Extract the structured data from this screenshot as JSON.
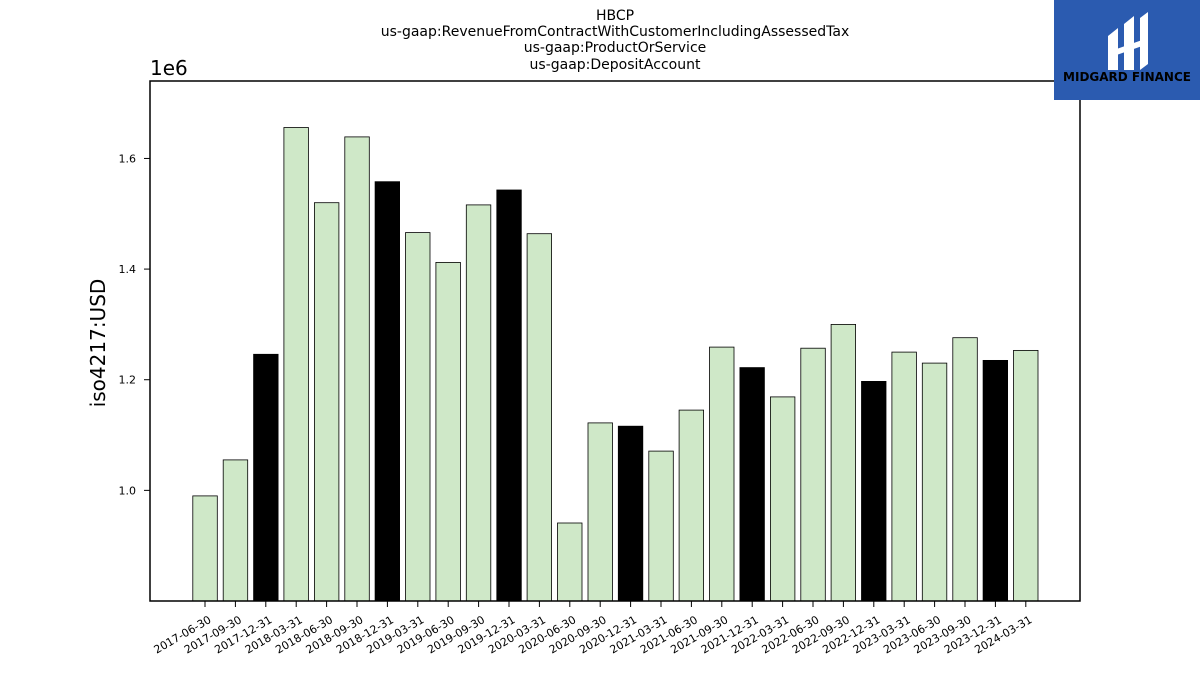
{
  "chart_data": {
    "type": "bar",
    "title_lines": [
      "HBCP",
      "us-gaap:RevenueFromContractWithCustomerIncludingAssessedTax",
      "us-gaap:ProductOrService",
      "us-gaap:DepositAccount"
    ],
    "ylabel": "iso4217:USD",
    "y_offset_label": "1e6",
    "ylim": [
      0.8,
      1.74
    ],
    "yticks": [
      1.0,
      1.2,
      1.4,
      1.6
    ],
    "ytick_labels": [
      "1.0",
      "1.2",
      "1.4",
      "1.6"
    ],
    "categories": [
      "2017-06-30",
      "2017-09-30",
      "2017-12-31",
      "2018-03-31",
      "2018-06-30",
      "2018-09-30",
      "2018-12-31",
      "2019-03-31",
      "2019-06-30",
      "2019-09-30",
      "2019-12-31",
      "2020-03-31",
      "2020-06-30",
      "2020-09-30",
      "2020-12-31",
      "2021-03-31",
      "2021-06-30",
      "2021-09-30",
      "2021-12-31",
      "2022-03-31",
      "2022-06-30",
      "2022-09-30",
      "2022-12-31",
      "2023-03-31",
      "2023-06-30",
      "2023-09-30",
      "2023-12-31",
      "2024-03-31"
    ],
    "values": [
      0.99,
      1.055,
      1.246,
      1.656,
      1.52,
      1.639,
      1.558,
      1.466,
      1.412,
      1.516,
      1.543,
      1.464,
      0.941,
      1.122,
      1.116,
      1.071,
      1.145,
      1.259,
      1.222,
      1.169,
      1.257,
      1.3,
      1.197,
      1.25,
      1.23,
      1.276,
      1.235,
      1.253
    ],
    "colors": {
      "quarter": "#cfe8c8",
      "year_end": "#000000",
      "edge": "#000000"
    },
    "grid": false,
    "legend": "none"
  },
  "logo": {
    "text": "MIDGARD FINANCE",
    "background": "#2b5bb0"
  }
}
